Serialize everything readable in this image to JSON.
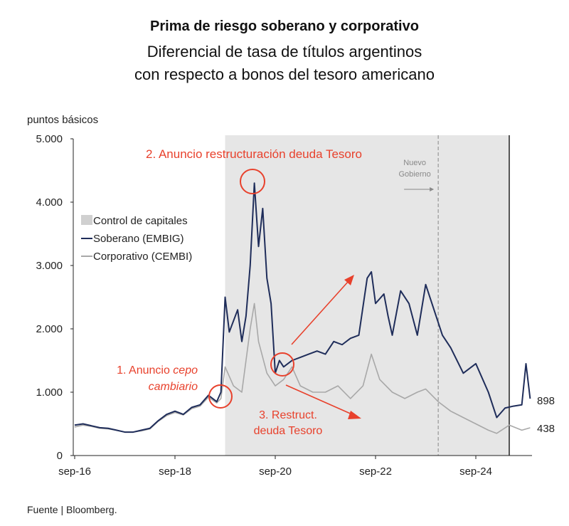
{
  "chart_data": {
    "type": "line",
    "title": "Prima de riesgo soberano y corporativo",
    "subtitle": [
      "Diferencial de tasa de títulos argentinos",
      "con respecto a bonos del tesoro americano"
    ],
    "ylabel": "puntos básicos",
    "ylim": [
      0,
      5000
    ],
    "yticks": [
      "0",
      "1.000",
      "2.000",
      "3.000",
      "4.000",
      "5.000"
    ],
    "xticks": [
      "sep-16",
      "sep-18",
      "sep-20",
      "sep-22",
      "sep-24"
    ],
    "grid": false,
    "legend_position": "left",
    "shaded_region": {
      "label": "Control de capitales",
      "start": "2019-09",
      "end": "2025-05",
      "color": "#e6e6e6"
    },
    "vline": {
      "label": "Nuevo Gobierno",
      "date": "2023-12"
    },
    "series": [
      {
        "name": "Soberano (EMBIG)",
        "color": "#1f2d5a",
        "end_label": "898",
        "points": [
          [
            "2016-09",
            480
          ],
          [
            "2016-11",
            500
          ],
          [
            "2017-01",
            470
          ],
          [
            "2017-03",
            440
          ],
          [
            "2017-05",
            430
          ],
          [
            "2017-07",
            400
          ],
          [
            "2017-09",
            370
          ],
          [
            "2017-11",
            370
          ],
          [
            "2018-01",
            400
          ],
          [
            "2018-03",
            430
          ],
          [
            "2018-05",
            550
          ],
          [
            "2018-07",
            650
          ],
          [
            "2018-09",
            700
          ],
          [
            "2018-11",
            650
          ],
          [
            "2019-01",
            760
          ],
          [
            "2019-03",
            800
          ],
          [
            "2019-05",
            950
          ],
          [
            "2019-07",
            850
          ],
          [
            "2019-08",
            1000
          ],
          [
            "2019-09",
            2500
          ],
          [
            "2019-10",
            1950
          ],
          [
            "2019-12",
            2300
          ],
          [
            "2020-01",
            1800
          ],
          [
            "2020-02",
            2200
          ],
          [
            "2020-03",
            3000
          ],
          [
            "2020-04",
            4300
          ],
          [
            "2020-05",
            3300
          ],
          [
            "2020-06",
            3900
          ],
          [
            "2020-07",
            2800
          ],
          [
            "2020-08",
            2400
          ],
          [
            "2020-09",
            1300
          ],
          [
            "2020-10",
            1500
          ],
          [
            "2020-11",
            1400
          ],
          [
            "2021-01",
            1500
          ],
          [
            "2021-03",
            1550
          ],
          [
            "2021-05",
            1600
          ],
          [
            "2021-07",
            1650
          ],
          [
            "2021-09",
            1600
          ],
          [
            "2021-11",
            1800
          ],
          [
            "2022-01",
            1750
          ],
          [
            "2022-03",
            1850
          ],
          [
            "2022-05",
            1900
          ],
          [
            "2022-07",
            2800
          ],
          [
            "2022-08",
            2900
          ],
          [
            "2022-09",
            2400
          ],
          [
            "2022-11",
            2550
          ],
          [
            "2022-12",
            2200
          ],
          [
            "2023-01",
            1900
          ],
          [
            "2023-03",
            2600
          ],
          [
            "2023-05",
            2400
          ],
          [
            "2023-07",
            1900
          ],
          [
            "2023-09",
            2700
          ],
          [
            "2023-11",
            2300
          ],
          [
            "2024-01",
            1900
          ],
          [
            "2024-03",
            1700
          ],
          [
            "2024-06",
            1300
          ],
          [
            "2024-09",
            1450
          ],
          [
            "2024-12",
            1000
          ],
          [
            "2025-02",
            600
          ],
          [
            "2025-04",
            750
          ],
          [
            "2025-06",
            780
          ],
          [
            "2025-08",
            800
          ],
          [
            "2025-09",
            1450
          ],
          [
            "2025-10",
            898
          ]
        ]
      },
      {
        "name": "Corporativo (CEMBI)",
        "color": "#a8a8a8",
        "end_label": "438",
        "points": [
          [
            "2016-09",
            450
          ],
          [
            "2016-11",
            480
          ],
          [
            "2017-01",
            460
          ],
          [
            "2017-03",
            430
          ],
          [
            "2017-05",
            420
          ],
          [
            "2017-07",
            400
          ],
          [
            "2017-09",
            370
          ],
          [
            "2017-11",
            370
          ],
          [
            "2018-01",
            390
          ],
          [
            "2018-03",
            420
          ],
          [
            "2018-05",
            540
          ],
          [
            "2018-07",
            630
          ],
          [
            "2018-09",
            680
          ],
          [
            "2018-11",
            640
          ],
          [
            "2019-01",
            740
          ],
          [
            "2019-03",
            780
          ],
          [
            "2019-05",
            920
          ],
          [
            "2019-07",
            830
          ],
          [
            "2019-08",
            900
          ],
          [
            "2019-09",
            1400
          ],
          [
            "2019-11",
            1100
          ],
          [
            "2020-01",
            1000
          ],
          [
            "2020-03",
            2000
          ],
          [
            "2020-04",
            2400
          ],
          [
            "2020-05",
            1800
          ],
          [
            "2020-07",
            1300
          ],
          [
            "2020-09",
            1100
          ],
          [
            "2020-11",
            1200
          ],
          [
            "2021-01",
            1400
          ],
          [
            "2021-03",
            1100
          ],
          [
            "2021-06",
            1000
          ],
          [
            "2021-09",
            1000
          ],
          [
            "2021-12",
            1100
          ],
          [
            "2022-03",
            900
          ],
          [
            "2022-06",
            1100
          ],
          [
            "2022-08",
            1600
          ],
          [
            "2022-10",
            1200
          ],
          [
            "2023-01",
            1000
          ],
          [
            "2023-04",
            900
          ],
          [
            "2023-07",
            1000
          ],
          [
            "2023-09",
            1050
          ],
          [
            "2023-12",
            850
          ],
          [
            "2024-03",
            700
          ],
          [
            "2024-06",
            600
          ],
          [
            "2024-09",
            500
          ],
          [
            "2024-12",
            400
          ],
          [
            "2025-02",
            350
          ],
          [
            "2025-05",
            480
          ],
          [
            "2025-08",
            400
          ],
          [
            "2025-10",
            438
          ]
        ]
      }
    ],
    "annotations": [
      {
        "text": "2. Anuncio  restructuración deuda Tesoro",
        "date": "2020-04"
      },
      {
        "text": "1. Anuncio ",
        "italic": "cepo",
        "text2": "cambiario",
        "date": "2019-08"
      },
      {
        "text": "3. Restruct.",
        "text2": "deuda Tesoro",
        "date": "2020-09"
      }
    ],
    "annotation_color": "#e8412c"
  },
  "source": "Fuente | Bloomberg."
}
